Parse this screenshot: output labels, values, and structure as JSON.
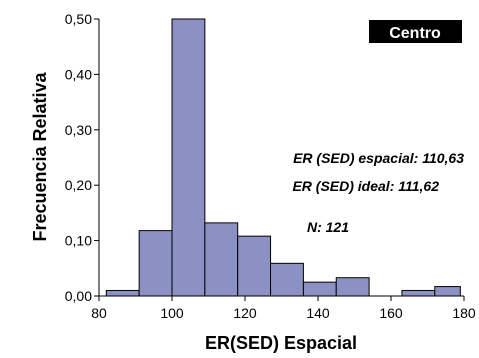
{
  "chart_data": {
    "type": "bar",
    "xlabel": "ER(SED) Espacial",
    "ylabel": "Frecuencia Relativa",
    "xlim": [
      80,
      180
    ],
    "ylim": [
      0,
      0.5
    ],
    "x_ticks": [
      80,
      100,
      120,
      140,
      160,
      180
    ],
    "x_tick_labels": [
      "80",
      "100",
      "120",
      "140",
      "160",
      "180"
    ],
    "y_ticks": [
      0,
      0.1,
      0.2,
      0.3,
      0.4,
      0.5
    ],
    "y_tick_labels": [
      "0,00",
      "0,10",
      "0,20",
      "0,30",
      "0,40",
      "0,50"
    ],
    "bar_color": "#8c91c4",
    "bars": [
      {
        "x0": 82,
        "x1": 91,
        "value": 0.01
      },
      {
        "x0": 91,
        "x1": 100,
        "value": 0.118
      },
      {
        "x0": 100,
        "x1": 109,
        "value": 0.5
      },
      {
        "x0": 109,
        "x1": 118,
        "value": 0.132
      },
      {
        "x0": 118,
        "x1": 127,
        "value": 0.108
      },
      {
        "x0": 127,
        "x1": 136,
        "value": 0.059
      },
      {
        "x0": 136,
        "x1": 145,
        "value": 0.025
      },
      {
        "x0": 145,
        "x1": 154,
        "value": 0.033
      },
      {
        "x0": 154,
        "x1": 163,
        "value": 0
      },
      {
        "x0": 163,
        "x1": 172,
        "value": 0.01
      },
      {
        "x0": 172,
        "x1": 179,
        "value": 0.017
      }
    ],
    "badge": "Centro",
    "annotations": [
      "ER (SED) espacial: 110,63",
      "ER (SED) ideal: 111,62",
      "N: 121"
    ]
  }
}
